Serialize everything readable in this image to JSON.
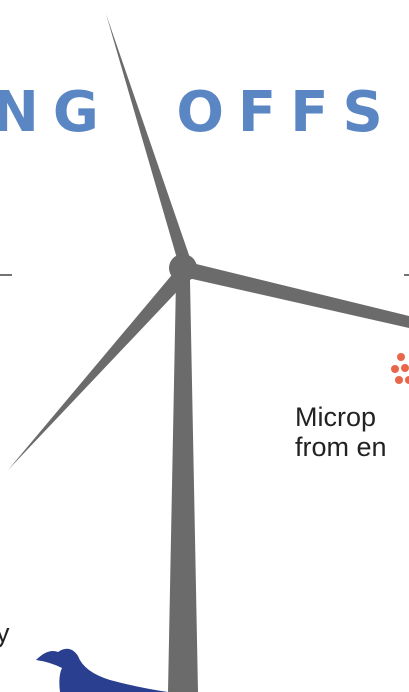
{
  "header": {
    "title": "NG OFFS"
  },
  "callout": {
    "lines": [
      "Microp",
      "from en"
    ]
  },
  "side_text": "y"
}
